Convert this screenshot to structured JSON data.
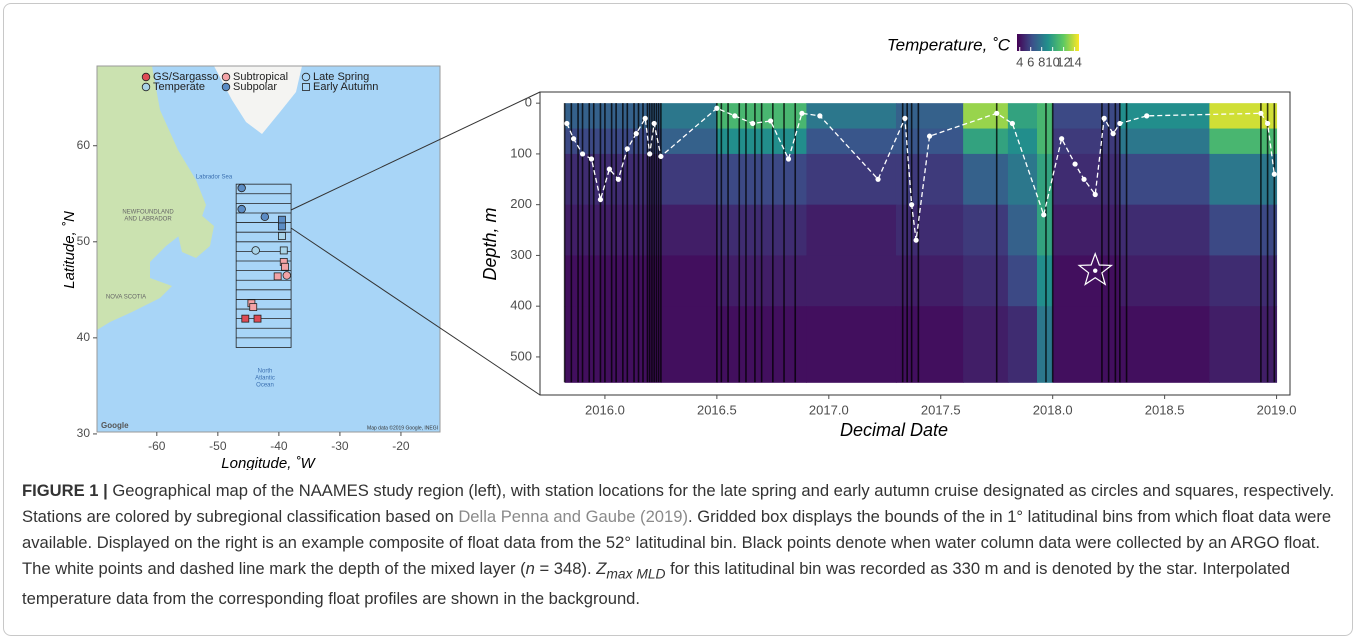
{
  "chart_data": [
    {
      "type": "scatter",
      "xlabel": "Longitude, ˚W",
      "ylabel": "Latitude, ˚N",
      "xlim": [
        -69.8,
        -13.6
      ],
      "ylim": [
        30.2,
        68.3
      ],
      "xticks": [
        -60,
        -50,
        -40,
        -30,
        -20
      ],
      "yticks": [
        30,
        40,
        50,
        60
      ],
      "series": [
        {
          "name": "GS/Sargasso",
          "color": "#de4b55",
          "x": [
            [],
            [
              -45.5,
              -43.5
            ]
          ],
          "y": [
            [],
            [
              42,
              42
            ]
          ]
        },
        {
          "name": "Temperate",
          "color": "#a9d3e8",
          "x": [
            [
              -43.8
            ],
            [
              -39.5,
              -39.2
            ]
          ],
          "y": [
            [
              49.1
            ],
            [
              50.6,
              49.1
            ]
          ]
        },
        {
          "name": "Subtropical",
          "color": "#f3a3a6",
          "x": [
            [
              -38.7
            ],
            [
              -39.2,
              -39.0,
              -40.2,
              -44.5,
              -44.2
            ]
          ],
          "y": [
            [
              46.5
            ],
            [
              47.9,
              47.4,
              46.4,
              43.6,
              43.2
            ]
          ]
        },
        {
          "name": "Subpolar",
          "color": "#5b8cc4",
          "x": [
            [
              -46.1,
              -46.1,
              -42.3
            ],
            [
              -39.5,
              -39.5
            ]
          ],
          "y": [
            [
              55.6,
              53.4,
              52.6
            ],
            [
              52.3,
              51.6
            ]
          ]
        }
      ],
      "seasons": [
        {
          "name": "Late Spring",
          "shape": "circle"
        },
        {
          "name": "Early Autumn",
          "shape": "square"
        }
      ],
      "bin_box": {
        "xlim": [
          -47,
          -38
        ],
        "ylim": [
          39,
          56
        ]
      },
      "annotations": {
        "sea": "Labrador Sea",
        "province1": "NEWFOUNDLAND",
        "province1b": "AND LABRADOR",
        "province2": "NOVA SCOTIA",
        "ocean1": "North",
        "ocean2": "Atlantic",
        "ocean3": "Ocean",
        "logo": "Google",
        "attribution": "Map data ©2019 Google, INEGI"
      }
    },
    {
      "type": "heatmap",
      "xlabel": "Decimal Date",
      "ylabel": "Depth, m",
      "xlim": [
        2015.71,
        2019.06
      ],
      "ylim": [
        575,
        -22
      ],
      "xticks": [
        {
          "value": 2016,
          "label": "2016.0"
        },
        {
          "value": 2016.5,
          "label": "2016.5"
        },
        {
          "value": 2017,
          "label": "2017.0"
        },
        {
          "value": 2017.5,
          "label": "2017.5"
        },
        {
          "value": 2018,
          "label": "2018.0"
        },
        {
          "value": 2018.5,
          "label": "2018.5"
        },
        {
          "value": 2019,
          "label": "2019.0"
        }
      ],
      "yticks": [
        0,
        100,
        200,
        300,
        400,
        500
      ],
      "x_edges": [
        2015.82,
        2016.25,
        2016.5,
        2016.9,
        2017.3,
        2017.6,
        2017.8,
        2017.93,
        2018.0,
        2018.3,
        2018.7,
        2019.0
      ],
      "depth_edges": [
        0,
        50,
        100,
        200,
        300,
        400,
        550
      ],
      "values": [
        [
          7,
          8,
          11,
          8,
          7,
          13,
          10,
          11,
          6,
          9,
          14
        ],
        [
          6,
          7,
          9,
          6.5,
          6.5,
          10,
          9,
          11,
          5.5,
          8,
          11
        ],
        [
          5,
          5.5,
          6,
          5.5,
          5.5,
          7,
          8,
          10,
          5,
          6,
          8
        ],
        [
          4.5,
          4.5,
          5,
          4.5,
          5,
          5.5,
          7,
          10,
          4.5,
          5,
          6
        ],
        [
          4,
          4,
          4.5,
          4.5,
          4.5,
          5,
          6,
          9,
          4,
          4.5,
          5
        ],
        [
          4,
          4,
          4,
          4,
          4,
          4.5,
          5,
          8,
          4,
          4,
          4.5
        ]
      ],
      "colorbar": {
        "title": "Temperature, ˚C",
        "lim": [
          3.5,
          14.8
        ],
        "ticks": [
          4,
          6,
          8,
          10,
          12,
          14
        ]
      },
      "profiles": [
        2015.82,
        2015.85,
        2015.88,
        2015.9,
        2015.93,
        2015.95,
        2015.98,
        2016.0,
        2016.03,
        2016.05,
        2016.08,
        2016.1,
        2016.13,
        2016.15,
        2016.17,
        2016.19,
        2016.2,
        2016.21,
        2016.22,
        2016.23,
        2016.24,
        2016.25,
        2016.5,
        2016.52,
        2016.55,
        2016.6,
        2016.63,
        2016.67,
        2016.7,
        2016.75,
        2016.8,
        2016.85,
        2017.33,
        2017.35,
        2017.37,
        2017.4,
        2017.75,
        2017.97,
        2018.0,
        2018.22,
        2018.25,
        2018.28,
        2018.3,
        2018.33,
        2018.93,
        2018.96,
        2018.99
      ],
      "mld": {
        "x": [
          2015.83,
          2015.86,
          2015.9,
          2015.94,
          2015.98,
          2016.02,
          2016.06,
          2016.1,
          2016.14,
          2016.18,
          2016.2,
          2016.22,
          2016.25,
          2016.5,
          2016.58,
          2016.66,
          2016.74,
          2016.82,
          2016.88,
          2016.96,
          2017.22,
          2017.34,
          2017.37,
          2017.39,
          2017.45,
          2017.75,
          2017.82,
          2017.96,
          2018.04,
          2018.1,
          2018.14,
          2018.19,
          2018.23,
          2018.27,
          2018.3,
          2018.42,
          2018.93,
          2018.96,
          2018.99
        ],
        "y": [
          40,
          70,
          100,
          110,
          190,
          130,
          150,
          90,
          60,
          30,
          100,
          40,
          105,
          10,
          25,
          40,
          35,
          110,
          20,
          25,
          150,
          30,
          200,
          270,
          65,
          20,
          40,
          220,
          70,
          120,
          150,
          180,
          30,
          60,
          40,
          25,
          20,
          40,
          140
        ]
      },
      "star": {
        "x": 2018.19,
        "y": 330
      }
    }
  ],
  "caption": {
    "label": "FIGURE 1 |",
    "text_1": " Geographical map of the NAAMES study region (left), with station locations for the late spring and early autumn cruise designated as circles and squares, respectively. Stations are colored by subregional classification based on ",
    "link": "Della Penna and Gaube (2019)",
    "text_2": ". Gridded box displays the bounds of the in 1° latitudinal bins from which float data were available. Displayed on the right is an example composite of float data from the 52° latitudinal bin. Black points denote when water column data were collected by an ARGO float. The white points and dashed line mark the depth of the mixed layer (",
    "n": "n",
    "text_3": " = 348). ",
    "z": "Z",
    "z_sub": "max MLD",
    "text_4": " for this latitudinal bin was recorded as 330 m and is denoted by the star. Interpolated temperature data from the corresponding float profiles are shown in the background."
  }
}
